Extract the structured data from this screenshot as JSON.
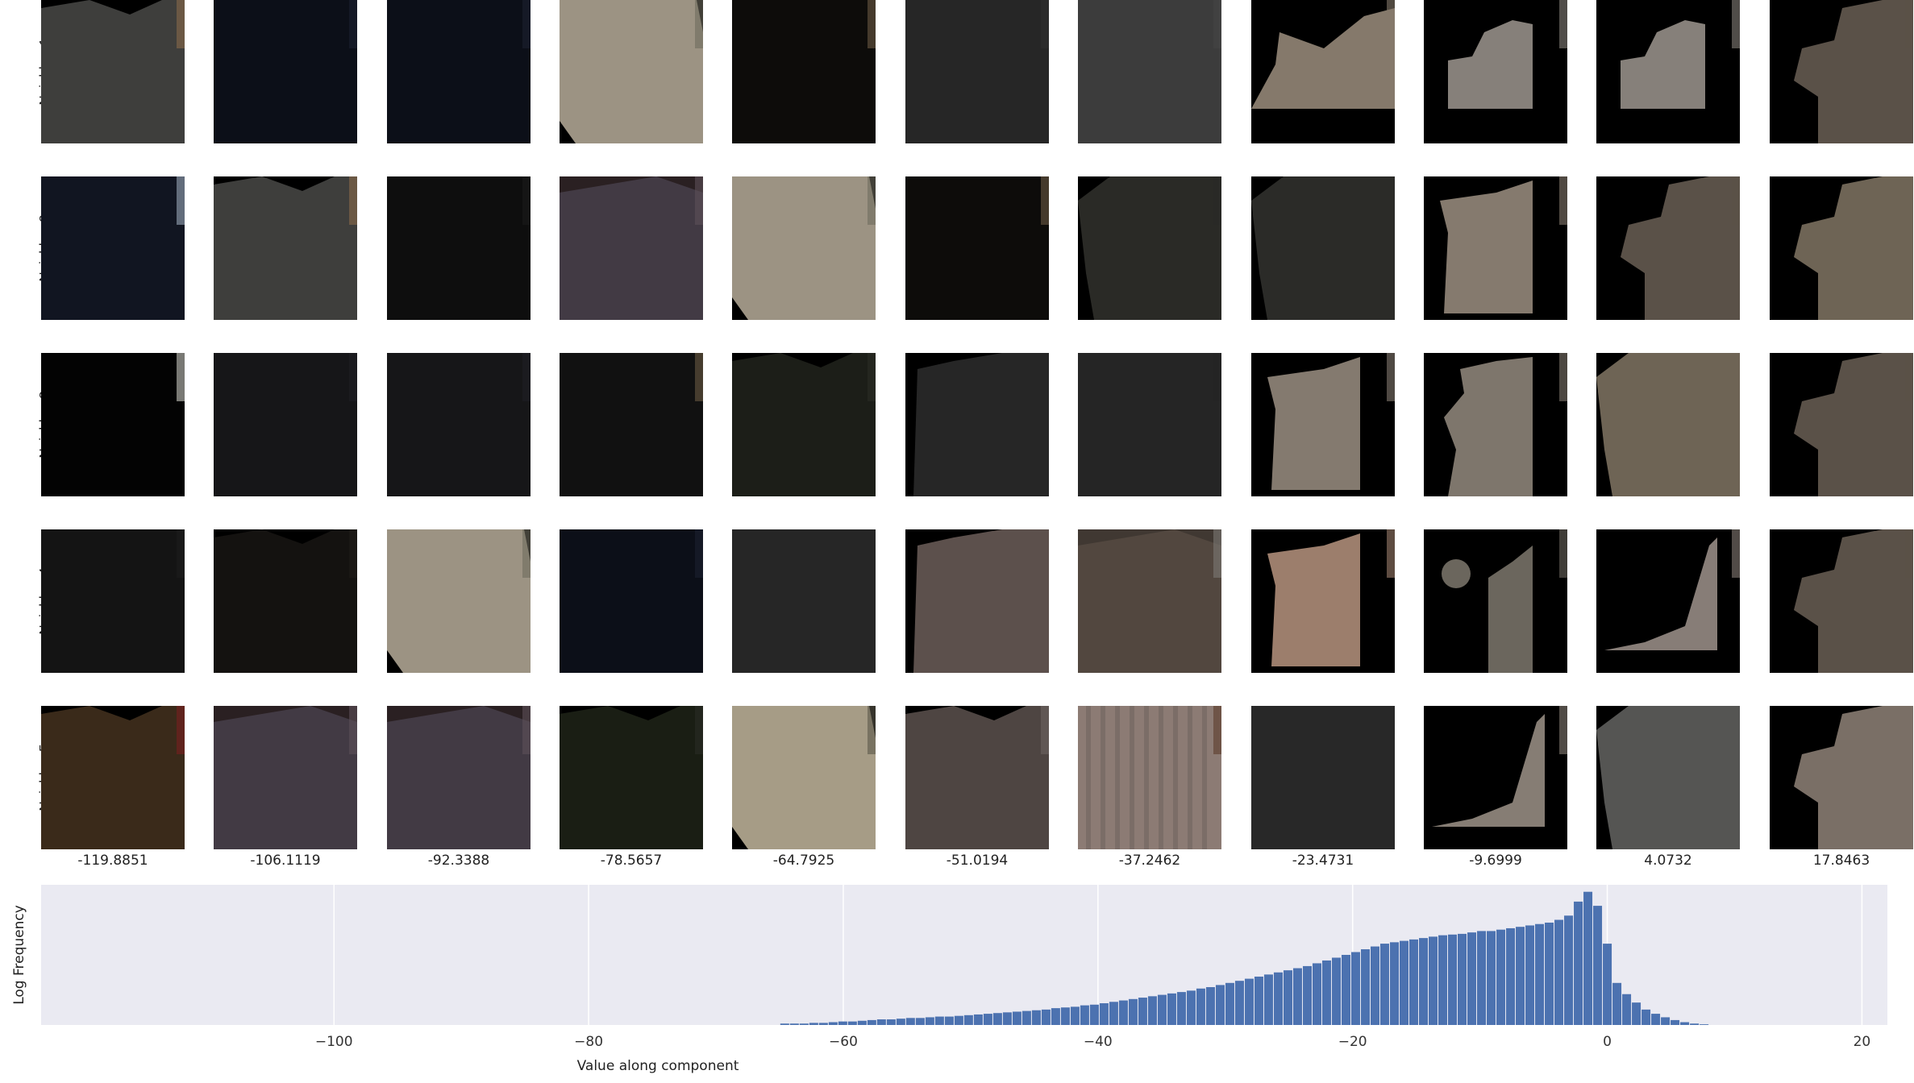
{
  "rows": [
    "Neighbor 1",
    "Neighbor 2",
    "Neighbor 3",
    "Neighbor 4",
    "Neighbor 5"
  ],
  "columns": [
    "-119.8851",
    "-106.1119",
    "-92.3388",
    "-78.5657",
    "-64.7925",
    "-51.0194",
    "-37.2462",
    "-23.4731",
    "-9.6999",
    "4.0732",
    "17.8463"
  ],
  "tiles": [
    [
      {
        "bg": "#000000",
        "shape": "#3e3e3c",
        "edge": "#8a6a4a",
        "form": "blob-left"
      },
      {
        "bg": "#06080c",
        "shape": "#0c0f18",
        "edge": "#1c2030",
        "form": "dark-full"
      },
      {
        "bg": "#06080c",
        "shape": "#0c0f18",
        "edge": "#1c2030",
        "form": "dark-full"
      },
      {
        "bg": "#000000",
        "shape": "#9c9383",
        "edge": "#6e6a5e",
        "form": "octagon"
      },
      {
        "bg": "#050505",
        "shape": "#0d0c0a",
        "edge": "#6a5a42",
        "form": "dark-full"
      },
      {
        "bg": "#1a1a1a",
        "shape": "#262626",
        "edge": "#2f2f2f",
        "form": "full"
      },
      {
        "bg": "#333333",
        "shape": "#3c3c3c",
        "edge": "#444444",
        "form": "full"
      },
      {
        "bg": "#000000",
        "shape": "#85796b",
        "edge": "#85796b",
        "form": "mountain"
      },
      {
        "bg": "#000000",
        "shape": "#86807a",
        "edge": "#86807a",
        "form": "hook"
      },
      {
        "bg": "#000000",
        "shape": "#86807a",
        "edge": "#86807a",
        "form": "hook"
      },
      {
        "bg": "#000000",
        "shape": "#5a5148",
        "edge": "#5a5148",
        "form": "blob-right"
      }
    ],
    [
      {
        "bg": "#0a0c12",
        "shape": "#111521",
        "edge": "#9aa6b8",
        "form": "dark-full"
      },
      {
        "bg": "#000000",
        "shape": "#3e3e3c",
        "edge": "#8a6a4a",
        "form": "blob-left"
      },
      {
        "bg": "#080808",
        "shape": "#0e0e0e",
        "edge": "#1a1a1a",
        "form": "dark-full"
      },
      {
        "bg": "#2a2022",
        "shape": "#423a44",
        "edge": "#5d5058",
        "form": "head"
      },
      {
        "bg": "#000000",
        "shape": "#9c9383",
        "edge": "#6e6a5e",
        "form": "octagon"
      },
      {
        "bg": "#050505",
        "shape": "#0d0c0a",
        "edge": "#6a5a42",
        "form": "dark-full"
      },
      {
        "bg": "#000000",
        "shape": "#2a2a26",
        "edge": "#2a2a26",
        "form": "blob-bottom"
      },
      {
        "bg": "#000000",
        "shape": "#2b2b28",
        "edge": "#2b2b28",
        "form": "blob-bottom"
      },
      {
        "bg": "#000000",
        "shape": "#857a6e",
        "edge": "#857a6e",
        "form": "tall-right"
      },
      {
        "bg": "#000000",
        "shape": "#5a5148",
        "edge": "#5a5148",
        "form": "blob-right"
      },
      {
        "bg": "#000000",
        "shape": "#6e6455",
        "edge": "#6e6455",
        "form": "blob-right"
      }
    ],
    [
      {
        "bg": "#000000",
        "shape": "#030303",
        "edge": "#c8c8c0",
        "form": "dark-full"
      },
      {
        "bg": "#0d0d0f",
        "shape": "#161618",
        "edge": "#202024",
        "form": "full"
      },
      {
        "bg": "#0d0d0f",
        "shape": "#161618",
        "edge": "#202024",
        "form": "full"
      },
      {
        "bg": "#080808",
        "shape": "#111111",
        "edge": "#6a5a42",
        "form": "dark-full"
      },
      {
        "bg": "#000000",
        "shape": "#1c1e18",
        "edge": "#2a2c24",
        "form": "blob-left"
      },
      {
        "bg": "#000000",
        "shape": "#262626",
        "edge": "#262626",
        "form": "tall-left"
      },
      {
        "bg": "#202020",
        "shape": "#252525",
        "edge": "#252525",
        "form": "full"
      },
      {
        "bg": "#000000",
        "shape": "#847a6f",
        "edge": "#847a6f",
        "form": "tall-right"
      },
      {
        "bg": "#000000",
        "shape": "#7e766c",
        "edge": "#7e766c",
        "form": "wave"
      },
      {
        "bg": "#000000",
        "shape": "#6e6455",
        "edge": "#6e6455",
        "form": "blob-bottom"
      },
      {
        "bg": "#000000",
        "shape": "#5a5148",
        "edge": "#5a5148",
        "form": "blob-right"
      }
    ],
    [
      {
        "bg": "#0b0b0b",
        "shape": "#141414",
        "edge": "#1c1c1c",
        "form": "full"
      },
      {
        "bg": "#000000",
        "shape": "#141210",
        "edge": "#1e1a18",
        "form": "blob-left"
      },
      {
        "bg": "#000000",
        "shape": "#9c9383",
        "edge": "#6e6a5e",
        "form": "octagon"
      },
      {
        "bg": "#06080c",
        "shape": "#0c0f18",
        "edge": "#1c2030",
        "form": "dark-full"
      },
      {
        "bg": "#1e1e1e",
        "shape": "#262626",
        "edge": "#262626",
        "form": "full"
      },
      {
        "bg": "#000000",
        "shape": "#5c504c",
        "edge": "#5c504c",
        "form": "tall-left"
      },
      {
        "bg": "#403832",
        "shape": "#52473f",
        "edge": "#7d7a74",
        "form": "head"
      },
      {
        "bg": "#000000",
        "shape": "#9c7e6c",
        "edge": "#9c7e6c",
        "form": "tall-right"
      },
      {
        "bg": "#000000",
        "shape": "#6b665d",
        "edge": "#6b665d",
        "form": "dot-bar"
      },
      {
        "bg": "#000000",
        "shape": "#877d77",
        "edge": "#877d77",
        "form": "ramp"
      },
      {
        "bg": "#000000",
        "shape": "#5a5148",
        "edge": "#5a5148",
        "form": "blob-right"
      }
    ],
    [
      {
        "bg": "#000000",
        "shape": "#3a2a1a",
        "edge": "#7a2020",
        "form": "blob-left"
      },
      {
        "bg": "#2a2022",
        "shape": "#423a44",
        "edge": "#5d5058",
        "form": "head"
      },
      {
        "bg": "#2a2022",
        "shape": "#423a44",
        "edge": "#5d5058",
        "form": "head"
      },
      {
        "bg": "#000000",
        "shape": "#1a1e14",
        "edge": "#2a2c24",
        "form": "blob-left"
      },
      {
        "bg": "#000000",
        "shape": "#a69c86",
        "edge": "#5a564a",
        "form": "octagon"
      },
      {
        "bg": "#000000",
        "shape": "#4e4542",
        "edge": "#6c6460",
        "form": "blob-left"
      },
      {
        "bg": "#7d6e68",
        "shape": "#8c7b74",
        "edge": "#5a3a2a",
        "form": "stripes"
      },
      {
        "bg": "#1e1e1e",
        "shape": "#282828",
        "edge": "#282828",
        "form": "full"
      },
      {
        "bg": "#000000",
        "shape": "#867d74",
        "edge": "#867d74",
        "form": "ramp"
      },
      {
        "bg": "#000000",
        "shape": "#555553",
        "edge": "#555553",
        "form": "blob-bottom"
      },
      {
        "bg": "#000000",
        "shape": "#7a6f66",
        "edge": "#7a6f66",
        "form": "blob-right"
      }
    ]
  ],
  "chart_data": {
    "type": "bar",
    "xlabel": "Value along component",
    "ylabel": "Log Frequency",
    "xlim": [
      -123,
      22
    ],
    "xticks": [
      "−100",
      "−80",
      "−60",
      "−40",
      "−20",
      "0",
      "20"
    ],
    "xtick_values": [
      -100,
      -80,
      -60,
      -40,
      -20,
      0,
      20
    ],
    "grid": true,
    "colors": {
      "bar": "#4c72b0",
      "background": "#eaeaf2",
      "grid": "#ffffff"
    },
    "bin_width": 0.76,
    "x": [
      -64.6,
      -63.84,
      -63.08,
      -62.32,
      -61.56,
      -60.8,
      -60.04,
      -59.28,
      -58.52,
      -57.76,
      -57.0,
      -56.24,
      -55.48,
      -54.72,
      -53.96,
      -53.2,
      -52.44,
      -51.68,
      -50.92,
      -50.16,
      -49.4,
      -48.64,
      -47.88,
      -47.12,
      -46.36,
      -45.6,
      -44.84,
      -44.08,
      -43.32,
      -42.56,
      -41.8,
      -41.04,
      -40.28,
      -39.52,
      -38.76,
      -38.0,
      -37.24,
      -36.48,
      -35.72,
      -34.96,
      -34.2,
      -33.44,
      -32.68,
      -31.92,
      -31.16,
      -30.4,
      -29.64,
      -28.88,
      -28.12,
      -27.36,
      -26.6,
      -25.84,
      -25.08,
      -24.32,
      -23.56,
      -22.8,
      -22.04,
      -21.28,
      -20.52,
      -19.76,
      -19.0,
      -18.24,
      -17.48,
      -16.72,
      -15.96,
      -15.2,
      -14.44,
      -13.68,
      -12.92,
      -12.16,
      -11.4,
      -10.64,
      -9.88,
      -9.12,
      -8.36,
      -7.6,
      -6.84,
      -6.08,
      -5.32,
      -4.56,
      -3.8,
      -3.04,
      -2.28,
      -1.52,
      -0.76,
      0.0,
      0.76,
      1.52,
      2.28,
      3.04,
      3.8,
      4.56,
      5.32,
      6.08,
      6.84,
      7.6
    ],
    "values": [
      0.01,
      0.01,
      0.01,
      0.015,
      0.015,
      0.02,
      0.025,
      0.025,
      0.03,
      0.035,
      0.04,
      0.04,
      0.045,
      0.05,
      0.05,
      0.055,
      0.06,
      0.06,
      0.065,
      0.07,
      0.075,
      0.08,
      0.085,
      0.09,
      0.095,
      0.1,
      0.105,
      0.11,
      0.12,
      0.125,
      0.13,
      0.14,
      0.145,
      0.155,
      0.165,
      0.175,
      0.185,
      0.195,
      0.205,
      0.215,
      0.225,
      0.235,
      0.245,
      0.26,
      0.27,
      0.285,
      0.3,
      0.315,
      0.33,
      0.345,
      0.36,
      0.375,
      0.39,
      0.405,
      0.42,
      0.44,
      0.46,
      0.48,
      0.5,
      0.52,
      0.54,
      0.56,
      0.58,
      0.59,
      0.6,
      0.61,
      0.62,
      0.63,
      0.64,
      0.645,
      0.65,
      0.66,
      0.67,
      0.67,
      0.68,
      0.69,
      0.7,
      0.71,
      0.72,
      0.73,
      0.75,
      0.78,
      0.88,
      0.95,
      0.85,
      0.58,
      0.3,
      0.22,
      0.16,
      0.11,
      0.08,
      0.055,
      0.035,
      0.02,
      0.01,
      0.005
    ]
  }
}
